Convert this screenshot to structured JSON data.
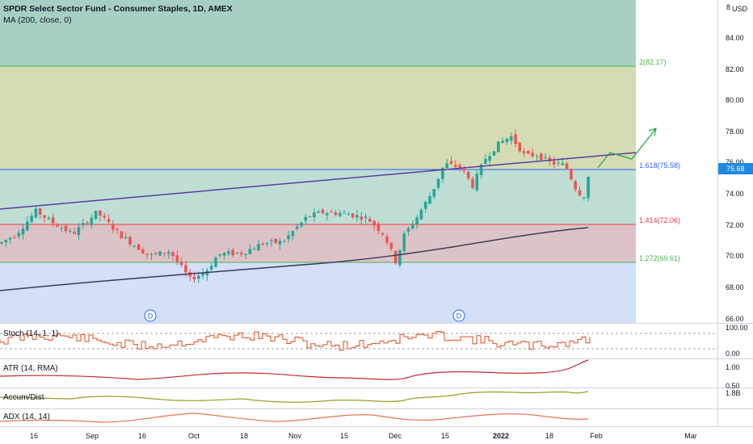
{
  "header": {
    "symbol_title": "SPDR Select Sector Fund - Consumer Staples, 1D, AMEX",
    "ma_legend": "MA (200, close, 0)"
  },
  "price_axis": {
    "currency": "USD",
    "top_partial": "8",
    "ticks": [
      "84.00",
      "82.00",
      "80.00",
      "78.00",
      "76.00",
      "74.00",
      "72.00",
      "70.00",
      "68.00",
      "66.00"
    ],
    "current_price": "75.68",
    "current_price_color": "#1e88e5"
  },
  "fib_levels": [
    {
      "label": "2(82.17)",
      "color": "#4caf50"
    },
    {
      "label": "1.618(75.58)",
      "color": "#2962ff"
    },
    {
      "label": "1.414(72.06)",
      "color": "#f23645"
    },
    {
      "label": "1.272(69.61)",
      "color": "#4caf50"
    }
  ],
  "dividend_markers": [
    "D",
    "D"
  ],
  "time_axis": {
    "labels": [
      "16",
      "Sep",
      "16",
      "Oct",
      "18",
      "Nov",
      "15",
      "Dec",
      "15",
      "2022",
      "18",
      "Feb",
      "Mar"
    ]
  },
  "panes": {
    "stoch": {
      "legend": "Stoch (14, 1, 1)",
      "ticks": [
        "100.00",
        "0.00"
      ]
    },
    "atr": {
      "legend": "ATR (14, RMA)",
      "ticks": [
        "1.00",
        "0.50"
      ]
    },
    "accum": {
      "legend": "Accum/Dist",
      "ticks": [
        "1.8B"
      ]
    },
    "adx": {
      "legend": "ADX (14, 14)",
      "ticks": []
    }
  },
  "colors": {
    "up": "#26a69a",
    "down": "#ef5350",
    "trendline": "#5b3d9e",
    "ma": "#3b3b5c",
    "stoch": "#e64a19",
    "atr": "#c62828",
    "accum": "#9e9d24",
    "adx": "#e57357"
  }
}
